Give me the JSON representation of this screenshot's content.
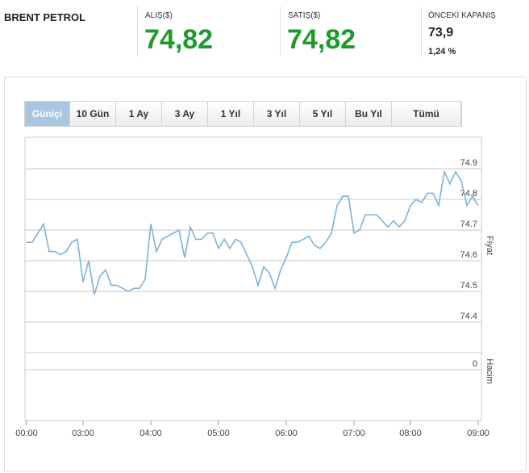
{
  "header": {
    "instrument": "BRENT PETROL",
    "bid": {
      "label": "ALIŞ($)",
      "value": "74,82"
    },
    "ask": {
      "label": "SATIŞ($)",
      "value": "74,82"
    },
    "previous_close": {
      "label": "ÖNCEKİ KAPANIŞ",
      "value": "73,9",
      "change": "1,24 %"
    }
  },
  "range_buttons": [
    "Güniçi",
    "10 Gün",
    "1 Ay",
    "3 Ay",
    "1 Yıl",
    "3 Yıl",
    "5 Yıl",
    "Bu Yıl",
    "Tümü"
  ],
  "active_button": 0,
  "chart_data": {
    "type": "line",
    "x": [
      0,
      1,
      2,
      3,
      4,
      5,
      6,
      7,
      8,
      9,
      10,
      11,
      12,
      13,
      14,
      15,
      16,
      17,
      18,
      19,
      20,
      21,
      22,
      23,
      24,
      25,
      26,
      27,
      28,
      29,
      30,
      31,
      32,
      33,
      34,
      35,
      36,
      37,
      38,
      39,
      40,
      41,
      42,
      43,
      44,
      45,
      46,
      47,
      48,
      49,
      50,
      51,
      52,
      53,
      54,
      55,
      56,
      57,
      58,
      59,
      60,
      61,
      62,
      63,
      64,
      65,
      66,
      67,
      68,
      69,
      70,
      71,
      72,
      73,
      74,
      75,
      76,
      77,
      78,
      79,
      80
    ],
    "series": [
      {
        "color": "#7eb2d8",
        "values": [
          74.66,
          74.66,
          74.69,
          74.72,
          74.63,
          74.63,
          74.62,
          74.63,
          74.66,
          74.67,
          74.53,
          74.6,
          74.49,
          74.55,
          74.57,
          74.52,
          74.52,
          74.51,
          74.5,
          74.51,
          74.51,
          74.54,
          74.72,
          74.63,
          74.67,
          74.68,
          74.69,
          74.7,
          74.61,
          74.71,
          74.67,
          74.67,
          74.69,
          74.69,
          74.64,
          74.67,
          74.64,
          74.67,
          74.66,
          74.62,
          74.58,
          74.52,
          74.58,
          74.56,
          74.51,
          74.57,
          74.61,
          74.66,
          74.66,
          74.67,
          74.68,
          74.65,
          74.64,
          74.66,
          74.69,
          74.78,
          74.81,
          74.81,
          74.69,
          74.7,
          74.75,
          74.75,
          74.75,
          74.73,
          74.71,
          74.73,
          74.71,
          74.73,
          74.78,
          74.8,
          74.79,
          74.82,
          74.82,
          74.78,
          74.89,
          74.85,
          74.89,
          74.86,
          74.78,
          74.81,
          74.78
        ]
      }
    ],
    "xlim": [
      0,
      80
    ],
    "xticks": [
      {
        "value": 0,
        "label": "00:00"
      },
      {
        "value": 10,
        "label": "03:00"
      },
      {
        "value": 22,
        "label": "04:00"
      },
      {
        "value": 34,
        "label": "05:00"
      },
      {
        "value": 46,
        "label": "06:00"
      },
      {
        "value": 58,
        "label": "07:00"
      },
      {
        "value": 68,
        "label": "08:00"
      },
      {
        "value": 80,
        "label": "09:00"
      }
    ],
    "ylim": [
      74.3,
      75.0
    ],
    "yticks": [
      74.4,
      74.5,
      74.6,
      74.7,
      74.8,
      74.9
    ],
    "y_label": "Fiyat",
    "grid": true,
    "volume": {
      "label": "Hacim",
      "ylim": [
        -3,
        1
      ],
      "yticks": [
        0
      ]
    }
  }
}
